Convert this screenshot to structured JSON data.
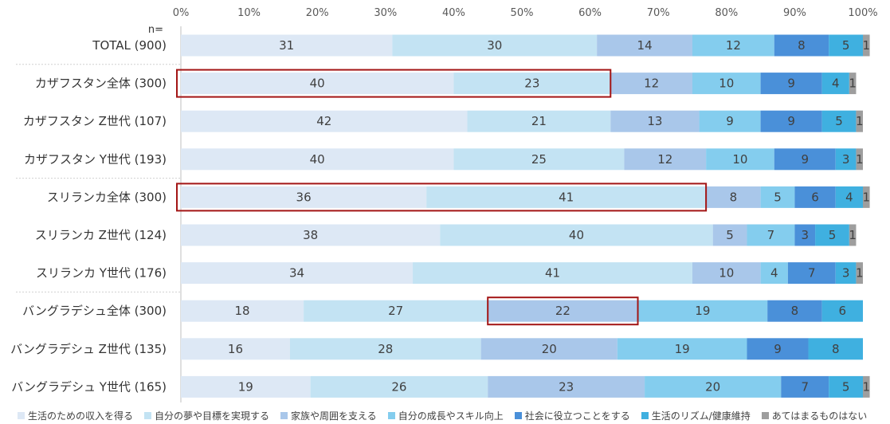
{
  "chart_data": {
    "type": "bar",
    "orientation": "horizontal",
    "stacked": "percent",
    "n_label": "n=",
    "xlim": [
      0,
      100
    ],
    "x_ticks": [
      "0%",
      "10%",
      "20%",
      "30%",
      "40%",
      "50%",
      "60%",
      "70%",
      "80%",
      "90%",
      "100%"
    ],
    "categories": [
      "TOTAL (900)",
      "カザフスタン全体 (300)",
      "カザフスタン Z世代 (107)",
      "カザフスタン Y世代 (193)",
      "スリランカ全体 (300)",
      "スリランカ Z世代 (124)",
      "スリランカ Y世代 (176)",
      "バングラデシュ全体 (300)",
      "バングラデシュ Z世代 (135)",
      "バングラデシュ Y世代 (165)"
    ],
    "series": [
      {
        "name": "生活のための収入を得る",
        "color": "#dde8f5",
        "values": [
          31,
          40,
          42,
          40,
          36,
          38,
          34,
          18,
          16,
          19
        ]
      },
      {
        "name": "自分の夢や目標を実現する",
        "color": "#c3e3f3",
        "values": [
          30,
          23,
          21,
          25,
          41,
          40,
          41,
          27,
          28,
          26
        ]
      },
      {
        "name": "家族や周囲を支える",
        "color": "#a9c7ea",
        "values": [
          14,
          12,
          13,
          12,
          8,
          5,
          10,
          22,
          20,
          23
        ]
      },
      {
        "name": "自分の成長やスキル向上",
        "color": "#84cdee",
        "values": [
          12,
          10,
          9,
          10,
          5,
          7,
          4,
          19,
          19,
          20
        ]
      },
      {
        "name": "社会に役立つことをする",
        "color": "#4a90d9",
        "values": [
          8,
          9,
          9,
          9,
          6,
          3,
          7,
          8,
          9,
          7
        ]
      },
      {
        "name": "生活のリズム/健康維持",
        "color": "#3fb0e0",
        "values": [
          5,
          4,
          5,
          3,
          4,
          5,
          3,
          6,
          8,
          5
        ]
      },
      {
        "name": "あてはまるものはない",
        "color": "#9e9e9e",
        "values": [
          1,
          1,
          1,
          1,
          1,
          1,
          1,
          0,
          0,
          1
        ]
      }
    ],
    "highlights": [
      {
        "row": 1,
        "series_from": 0,
        "series_to": 1
      },
      {
        "row": 4,
        "series_from": 0,
        "series_to": 1
      },
      {
        "row": 7,
        "series_from": 2,
        "series_to": 2
      }
    ],
    "highlight_color": "#a31515",
    "grid": true,
    "legend_position": "bottom"
  }
}
